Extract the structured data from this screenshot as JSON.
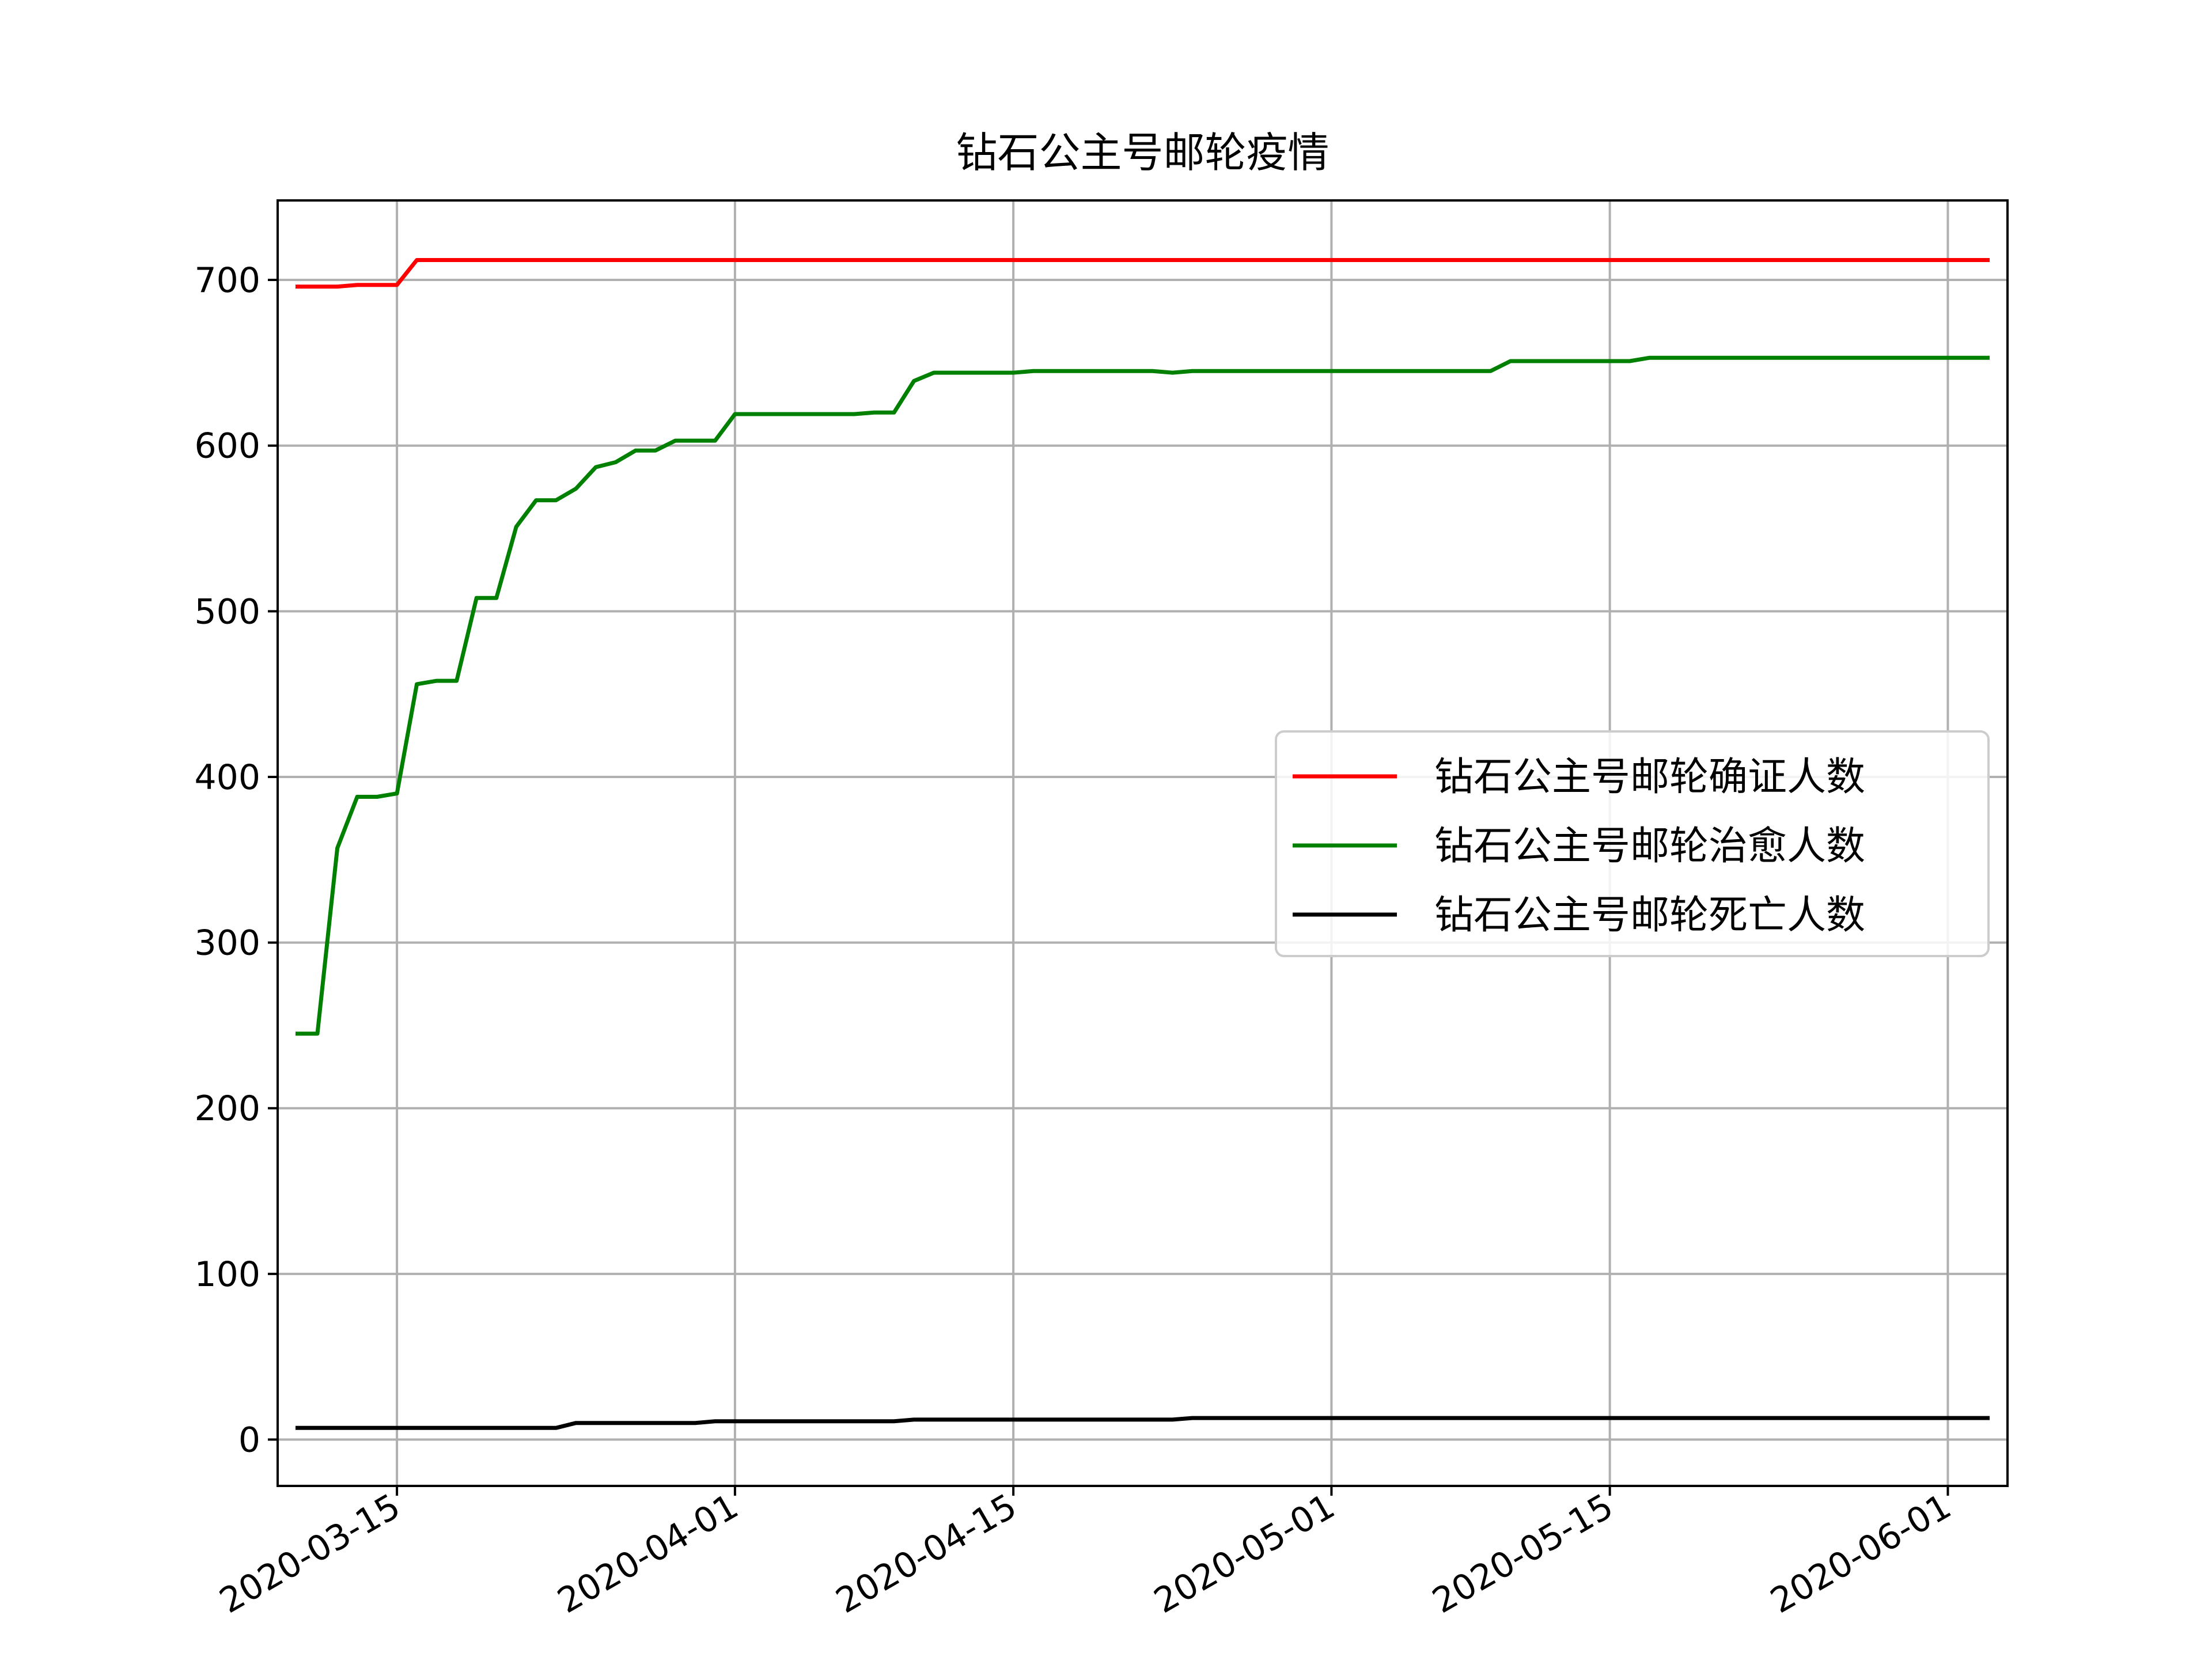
{
  "chart_data": {
    "type": "line",
    "title": "钻石公主号邮轮疫情",
    "xlabel": "",
    "ylabel": "",
    "x_axis_type": "date",
    "xlim": [
      "2020-03-09",
      "2020-06-04"
    ],
    "ylim": [
      -28,
      748
    ],
    "x_ticks": [
      "2020-03-15",
      "2020-04-01",
      "2020-04-15",
      "2020-05-01",
      "2020-05-15",
      "2020-06-01"
    ],
    "y_ticks": [
      0,
      100,
      200,
      300,
      400,
      500,
      600,
      700
    ],
    "grid": true,
    "legend_position": "center-right",
    "series": [
      {
        "name": "钻石公主号邮轮确证人数",
        "color": "#ff0000",
        "points": [
          [
            "2020-03-10",
            696
          ],
          [
            "2020-03-12",
            696
          ],
          [
            "2020-03-13",
            697
          ],
          [
            "2020-03-15",
            697
          ],
          [
            "2020-03-16",
            712
          ],
          [
            "2020-06-03",
            712
          ]
        ]
      },
      {
        "name": "钻石公主号邮轮治愈人数",
        "color": "#008000",
        "points": [
          [
            "2020-03-10",
            245
          ],
          [
            "2020-03-11",
            245
          ],
          [
            "2020-03-12",
            357
          ],
          [
            "2020-03-13",
            388
          ],
          [
            "2020-03-14",
            388
          ],
          [
            "2020-03-15",
            390
          ],
          [
            "2020-03-16",
            456
          ],
          [
            "2020-03-17",
            458
          ],
          [
            "2020-03-18",
            458
          ],
          [
            "2020-03-19",
            508
          ],
          [
            "2020-03-20",
            508
          ],
          [
            "2020-03-21",
            551
          ],
          [
            "2020-03-22",
            567
          ],
          [
            "2020-03-23",
            567
          ],
          [
            "2020-03-24",
            574
          ],
          [
            "2020-03-25",
            587
          ],
          [
            "2020-03-26",
            590
          ],
          [
            "2020-03-27",
            597
          ],
          [
            "2020-03-28",
            597
          ],
          [
            "2020-03-29",
            603
          ],
          [
            "2020-03-30",
            603
          ],
          [
            "2020-03-31",
            603
          ],
          [
            "2020-04-01",
            619
          ],
          [
            "2020-04-02",
            619
          ],
          [
            "2020-04-07",
            619
          ],
          [
            "2020-04-08",
            620
          ],
          [
            "2020-04-09",
            620
          ],
          [
            "2020-04-10",
            639
          ],
          [
            "2020-04-11",
            644
          ],
          [
            "2020-04-14",
            644
          ],
          [
            "2020-04-15",
            644
          ],
          [
            "2020-04-16",
            645
          ],
          [
            "2020-04-22",
            645
          ],
          [
            "2020-04-23",
            644
          ],
          [
            "2020-04-24",
            645
          ],
          [
            "2020-05-09",
            645
          ],
          [
            "2020-05-10",
            651
          ],
          [
            "2020-05-16",
            651
          ],
          [
            "2020-05-17",
            653
          ],
          [
            "2020-06-03",
            653
          ]
        ]
      },
      {
        "name": "钻石公主号邮轮死亡人数",
        "color": "#000000",
        "points": [
          [
            "2020-03-10",
            7
          ],
          [
            "2020-03-23",
            7
          ],
          [
            "2020-03-24",
            10
          ],
          [
            "2020-03-30",
            10
          ],
          [
            "2020-03-31",
            11
          ],
          [
            "2020-04-09",
            11
          ],
          [
            "2020-04-10",
            12
          ],
          [
            "2020-04-23",
            12
          ],
          [
            "2020-04-24",
            13
          ],
          [
            "2020-06-03",
            13
          ]
        ]
      }
    ]
  }
}
